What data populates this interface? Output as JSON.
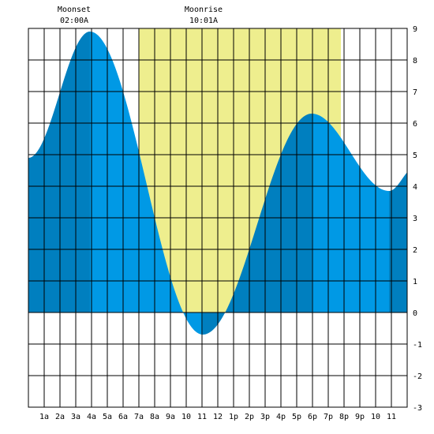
{
  "chart_data": {
    "type": "area",
    "title": "",
    "xlabel": "",
    "ylabel": "",
    "xlim": [
      0,
      24
    ],
    "ylim": [
      -3,
      9
    ],
    "grid": true,
    "x_ticks": [
      {
        "x": 1,
        "label": "1a"
      },
      {
        "x": 2,
        "label": "2a"
      },
      {
        "x": 3,
        "label": "3a"
      },
      {
        "x": 4,
        "label": "4a"
      },
      {
        "x": 5,
        "label": "5a"
      },
      {
        "x": 6,
        "label": "6a"
      },
      {
        "x": 7,
        "label": "7a"
      },
      {
        "x": 8,
        "label": "8a"
      },
      {
        "x": 9,
        "label": "9a"
      },
      {
        "x": 10,
        "label": "10"
      },
      {
        "x": 11,
        "label": "11"
      },
      {
        "x": 12,
        "label": "12"
      },
      {
        "x": 13,
        "label": "1p"
      },
      {
        "x": 14,
        "label": "2p"
      },
      {
        "x": 15,
        "label": "3p"
      },
      {
        "x": 16,
        "label": "4p"
      },
      {
        "x": 17,
        "label": "5p"
      },
      {
        "x": 18,
        "label": "6p"
      },
      {
        "x": 19,
        "label": "7p"
      },
      {
        "x": 20,
        "label": "8p"
      },
      {
        "x": 21,
        "label": "9p"
      },
      {
        "x": 22,
        "label": "10"
      },
      {
        "x": 23,
        "label": "11"
      }
    ],
    "y_ticks": [
      -3,
      -2,
      -1,
      0,
      1,
      2,
      3,
      4,
      5,
      6,
      7,
      8,
      9
    ],
    "tide_extrema": [
      {
        "x": 0.0,
        "y": 4.9
      },
      {
        "x": 3.9,
        "y": 8.9
      },
      {
        "x": 11.05,
        "y": -0.7
      },
      {
        "x": 17.95,
        "y": 6.3
      },
      {
        "x": 22.85,
        "y": 3.85
      },
      {
        "x": 24.5,
        "y": 4.6
      }
    ],
    "daylight": [
      7,
      19.8
    ],
    "moon_events": [
      {
        "label": "Moonset",
        "time": "02:00A",
        "x": 3.9
      },
      {
        "label": "Moonrise",
        "time": "10:01A",
        "x": 11.1
      }
    ],
    "colors": {
      "background": "#ffffff",
      "daylight": "#eeee8e",
      "tide_light": "#0099e5",
      "tide_dark": "#007fbf",
      "grid": "#000000"
    }
  }
}
